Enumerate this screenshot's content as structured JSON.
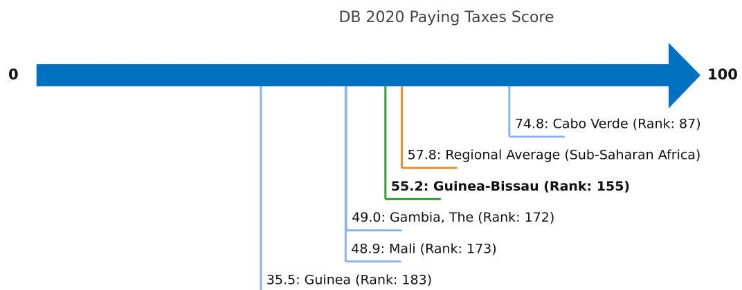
{
  "chart_data": {
    "type": "scale",
    "title": "DB 2020 Paying Taxes Score",
    "xlim": [
      0,
      100
    ],
    "xticks": [
      0,
      100
    ],
    "axis_color": "#0070c0",
    "values": [
      74.8,
      57.8,
      55.2,
      49.0,
      48.9,
      35.5
    ],
    "value_labels": [
      "74.8: Cabo Verde (Rank: 87)",
      "57.8: Regional Average (Sub-Saharan Africa)",
      "55.2: Guinea-Bissau (Rank: 155)",
      "49.0: Gambia, The (Rank: 172)",
      "48.9: Mali (Rank: 173)",
      "35.5: Guinea (Rank: 183)"
    ],
    "colors": [
      "#8db4e6",
      "#f28e2b",
      "#2ca02c",
      "#8db4e6",
      "#8db4e6",
      "#8db4e6"
    ],
    "bold": [
      false,
      false,
      true,
      false,
      false,
      false
    ]
  }
}
